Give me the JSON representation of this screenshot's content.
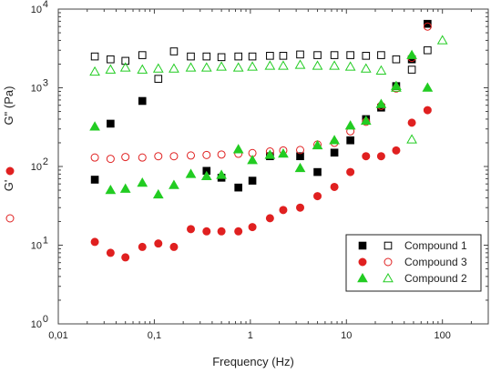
{
  "chart_data": {
    "type": "scatter",
    "x_scale": "log",
    "y_scale": "log",
    "xlim": [
      0.01,
      300
    ],
    "ylim": [
      1,
      10000
    ],
    "xlabel": "Frequency (Hz)",
    "ylabel_left_top": "G\" (Pa)",
    "ylabel_left_bottom": "G'",
    "x_ticks": [
      {
        "value": 0.01,
        "label": "0,01"
      },
      {
        "value": 0.1,
        "label": "0,1"
      },
      {
        "value": 1,
        "label": "1"
      },
      {
        "value": 10,
        "label": "10"
      },
      {
        "value": 100,
        "label": "100"
      }
    ],
    "y_ticks": [
      {
        "value": 1,
        "base": "10",
        "exp": "0"
      },
      {
        "value": 10,
        "base": "10",
        "exp": "1"
      },
      {
        "value": 100,
        "base": "10",
        "exp": "2"
      },
      {
        "value": 1000,
        "base": "10",
        "exp": "3"
      },
      {
        "value": 10000,
        "base": "10",
        "exp": "4"
      }
    ],
    "legend": {
      "placement": "bottom-right",
      "entries": [
        {
          "label": "Compound 1",
          "filled_marker": "square",
          "open_marker": "square",
          "color": "#000000"
        },
        {
          "label": "Compound 3",
          "filled_marker": "circle",
          "open_marker": "circle",
          "color": "#e02020"
        },
        {
          "label": "Compound 2",
          "filled_marker": "triangle",
          "open_marker": "triangle",
          "color": "#22cc22"
        }
      ]
    },
    "series": [
      {
        "compound": "Compound 1",
        "modulus": "G\"",
        "marker": "square",
        "fill": "filled",
        "color": "#000000",
        "points": [
          [
            0.024,
            68
          ],
          [
            0.035,
            350
          ],
          [
            0.075,
            680
          ],
          [
            0.35,
            88
          ],
          [
            0.5,
            72
          ],
          [
            0.75,
            54
          ],
          [
            1.05,
            66
          ],
          [
            1.6,
            135
          ],
          [
            3.3,
            135
          ],
          [
            5,
            85
          ],
          [
            7.5,
            150
          ],
          [
            11,
            215
          ],
          [
            16,
            400
          ],
          [
            23,
            560
          ],
          [
            33,
            1050
          ],
          [
            48,
            2300
          ],
          [
            70,
            6500
          ]
        ]
      },
      {
        "compound": "Compound 1",
        "modulus": "G'",
        "marker": "square",
        "fill": "open",
        "color": "#000000",
        "points": [
          [
            0.024,
            2500
          ],
          [
            0.035,
            2300
          ],
          [
            0.05,
            2200
          ],
          [
            0.075,
            2600
          ],
          [
            0.11,
            1300
          ],
          [
            0.16,
            2900
          ],
          [
            0.24,
            2500
          ],
          [
            0.35,
            2500
          ],
          [
            0.5,
            2450
          ],
          [
            0.75,
            2500
          ],
          [
            1.05,
            2500
          ],
          [
            1.6,
            2550
          ],
          [
            2.2,
            2550
          ],
          [
            3.3,
            2650
          ],
          [
            5,
            2600
          ],
          [
            7.5,
            2600
          ],
          [
            11,
            2600
          ],
          [
            16,
            2550
          ],
          [
            23,
            2600
          ],
          [
            33,
            2300
          ],
          [
            48,
            1700
          ],
          [
            70,
            3000
          ]
        ]
      },
      {
        "compound": "Compound 3",
        "modulus": "G\"",
        "marker": "circle",
        "fill": "filled",
        "color": "#e02020",
        "points": [
          [
            0.024,
            11
          ],
          [
            0.035,
            8
          ],
          [
            0.05,
            7
          ],
          [
            0.075,
            9.5
          ],
          [
            0.11,
            10.5
          ],
          [
            0.16,
            9.5
          ],
          [
            0.24,
            16
          ],
          [
            0.35,
            15
          ],
          [
            0.5,
            15
          ],
          [
            0.75,
            15
          ],
          [
            1.05,
            17
          ],
          [
            1.6,
            22
          ],
          [
            2.2,
            28
          ],
          [
            3.3,
            30
          ],
          [
            5,
            42
          ],
          [
            7.5,
            55
          ],
          [
            11,
            85
          ],
          [
            16,
            135
          ],
          [
            23,
            135
          ],
          [
            33,
            160
          ],
          [
            48,
            360
          ],
          [
            70,
            520
          ]
        ]
      },
      {
        "compound": "Compound 3",
        "modulus": "G'",
        "marker": "circle",
        "fill": "open",
        "color": "#e02020",
        "points": [
          [
            0.024,
            130
          ],
          [
            0.035,
            125
          ],
          [
            0.05,
            132
          ],
          [
            0.075,
            130
          ],
          [
            0.11,
            135
          ],
          [
            0.16,
            135
          ],
          [
            0.24,
            138
          ],
          [
            0.35,
            140
          ],
          [
            0.5,
            142
          ],
          [
            0.75,
            145
          ],
          [
            1.05,
            148
          ],
          [
            1.6,
            155
          ],
          [
            2.2,
            160
          ],
          [
            3.3,
            162
          ],
          [
            5,
            190
          ],
          [
            7.5,
            200
          ],
          [
            11,
            280
          ],
          [
            16,
            370
          ],
          [
            23,
            590
          ],
          [
            33,
            980
          ],
          [
            48,
            2400
          ],
          [
            70,
            6000
          ]
        ]
      },
      {
        "compound": "Compound 2",
        "modulus": "G\"",
        "marker": "triangle",
        "fill": "filled",
        "color": "#22cc22",
        "points": [
          [
            0.024,
            320
          ],
          [
            0.035,
            50
          ],
          [
            0.05,
            52
          ],
          [
            0.075,
            62
          ],
          [
            0.11,
            44
          ],
          [
            0.16,
            58
          ],
          [
            0.24,
            80
          ],
          [
            0.35,
            75
          ],
          [
            0.5,
            78
          ],
          [
            0.75,
            165
          ],
          [
            1.05,
            120
          ],
          [
            1.6,
            140
          ],
          [
            2.2,
            145
          ],
          [
            3.3,
            95
          ],
          [
            5,
            185
          ],
          [
            7.5,
            215
          ],
          [
            11,
            330
          ],
          [
            16,
            380
          ],
          [
            23,
            620
          ],
          [
            33,
            1050
          ],
          [
            48,
            2600
          ],
          [
            70,
            1000
          ]
        ]
      },
      {
        "compound": "Compound 2",
        "modulus": "G'",
        "marker": "triangle",
        "fill": "open",
        "color": "#22cc22",
        "points": [
          [
            0.024,
            1600
          ],
          [
            0.035,
            1700
          ],
          [
            0.05,
            1800
          ],
          [
            0.075,
            1700
          ],
          [
            0.11,
            1750
          ],
          [
            0.16,
            1750
          ],
          [
            0.24,
            1800
          ],
          [
            0.35,
            1800
          ],
          [
            0.5,
            1850
          ],
          [
            0.75,
            1800
          ],
          [
            1.05,
            1850
          ],
          [
            1.6,
            1900
          ],
          [
            2.2,
            1900
          ],
          [
            3.3,
            1950
          ],
          [
            5,
            1900
          ],
          [
            7.5,
            1900
          ],
          [
            11,
            1850
          ],
          [
            16,
            1750
          ],
          [
            23,
            1650
          ],
          [
            33,
            1000
          ],
          [
            48,
            220
          ],
          [
            100,
            4000
          ]
        ]
      }
    ]
  }
}
